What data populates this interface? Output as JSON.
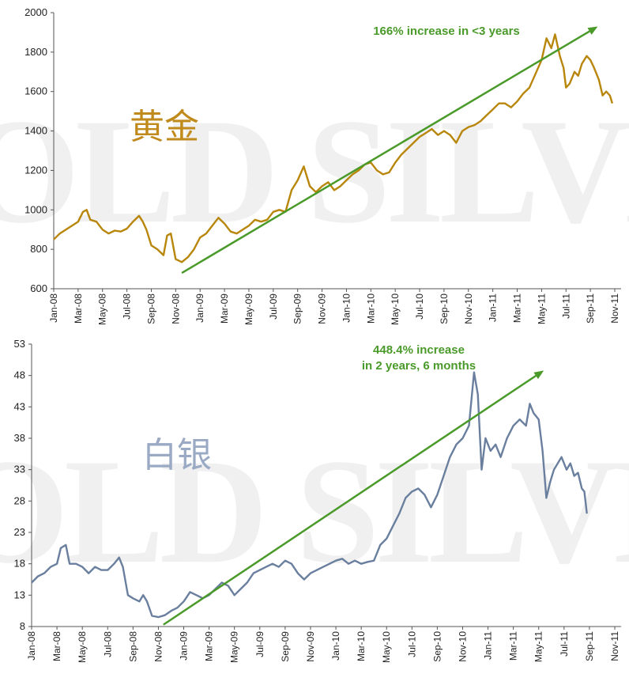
{
  "chart_data": [
    {
      "type": "line",
      "label": "黄金",
      "watermark": "GOLD SILVER",
      "line_color": "#b8860b",
      "label_color": "#c08a1c",
      "ylim": [
        600,
        2000
      ],
      "yticks": [
        "600",
        "800",
        "1000",
        "1200",
        "1400",
        "1600",
        "1800",
        "2000"
      ],
      "xticks": [
        "Jan-08",
        "Mar-08",
        "May-08",
        "Jul-08",
        "Sep-08",
        "Nov-08",
        "Jan-09",
        "Mar-09",
        "May-09",
        "Jul-09",
        "Sep-09",
        "Nov-09",
        "Jan-10",
        "Mar-10",
        "May-10",
        "Jul-10",
        "Sep-10",
        "Nov-10",
        "Jan-11",
        "Mar-11",
        "May-11",
        "Jul-11",
        "Sep-11",
        "Nov-11"
      ],
      "annotation": {
        "lines": [
          "166% increase in <3 years"
        ],
        "color": "#4a9a2a",
        "from": [
          10.5,
          680
        ],
        "to": [
          44.6,
          1930
        ]
      },
      "series": [
        {
          "values": [
            [
              0,
              850
            ],
            [
              0.5,
              880
            ],
            [
              1,
              900
            ],
            [
              1.5,
              920
            ],
            [
              2,
              940
            ],
            [
              2.4,
              990
            ],
            [
              2.7,
              1000
            ],
            [
              3,
              950
            ],
            [
              3.5,
              940
            ],
            [
              4,
              900
            ],
            [
              4.5,
              880
            ],
            [
              5,
              895
            ],
            [
              5.5,
              890
            ],
            [
              6,
              905
            ],
            [
              6.5,
              940
            ],
            [
              7,
              970
            ],
            [
              7.3,
              940
            ],
            [
              7.6,
              900
            ],
            [
              8,
              820
            ],
            [
              8.5,
              800
            ],
            [
              9,
              770
            ],
            [
              9.3,
              870
            ],
            [
              9.6,
              880
            ],
            [
              10,
              750
            ],
            [
              10.5,
              735
            ],
            [
              11,
              760
            ],
            [
              11.5,
              800
            ],
            [
              12,
              860
            ],
            [
              12.5,
              880
            ],
            [
              13,
              920
            ],
            [
              13.5,
              960
            ],
            [
              14,
              930
            ],
            [
              14.5,
              890
            ],
            [
              15,
              880
            ],
            [
              15.5,
              900
            ],
            [
              16,
              920
            ],
            [
              16.5,
              950
            ],
            [
              17,
              940
            ],
            [
              17.5,
              950
            ],
            [
              18,
              990
            ],
            [
              18.5,
              1000
            ],
            [
              19,
              990
            ],
            [
              19.5,
              1100
            ],
            [
              20,
              1150
            ],
            [
              20.5,
              1220
            ],
            [
              21,
              1120
            ],
            [
              21.5,
              1090
            ],
            [
              22,
              1120
            ],
            [
              22.5,
              1140
            ],
            [
              23,
              1100
            ],
            [
              23.5,
              1120
            ],
            [
              24,
              1150
            ],
            [
              24.5,
              1180
            ],
            [
              25,
              1200
            ],
            [
              25.5,
              1230
            ],
            [
              26,
              1240
            ],
            [
              26.5,
              1200
            ],
            [
              27,
              1180
            ],
            [
              27.5,
              1190
            ],
            [
              28,
              1240
            ],
            [
              28.5,
              1280
            ],
            [
              29,
              1310
            ],
            [
              29.5,
              1340
            ],
            [
              30,
              1370
            ],
            [
              30.5,
              1390
            ],
            [
              31,
              1410
            ],
            [
              31.5,
              1380
            ],
            [
              32,
              1400
            ],
            [
              32.5,
              1380
            ],
            [
              33,
              1340
            ],
            [
              33.5,
              1400
            ],
            [
              34,
              1420
            ],
            [
              34.5,
              1430
            ],
            [
              35,
              1450
            ],
            [
              35.5,
              1480
            ],
            [
              36,
              1510
            ],
            [
              36.5,
              1540
            ],
            [
              37,
              1540
            ],
            [
              37.5,
              1520
            ],
            [
              38,
              1550
            ],
            [
              38.5,
              1590
            ],
            [
              39,
              1620
            ],
            [
              39.5,
              1690
            ],
            [
              40,
              1760
            ],
            [
              40.4,
              1870
            ],
            [
              40.8,
              1820
            ],
            [
              41.1,
              1890
            ],
            [
              41.5,
              1780
            ],
            [
              41.8,
              1720
            ],
            [
              42,
              1620
            ],
            [
              42.3,
              1640
            ],
            [
              42.7,
              1700
            ],
            [
              43,
              1680
            ],
            [
              43.3,
              1740
            ],
            [
              43.7,
              1780
            ],
            [
              44,
              1760
            ],
            [
              44.3,
              1720
            ],
            [
              44.7,
              1660
            ],
            [
              45,
              1580
            ],
            [
              45.3,
              1600
            ],
            [
              45.6,
              1580
            ],
            [
              45.8,
              1540
            ]
          ]
        }
      ]
    },
    {
      "type": "line",
      "label": "白银",
      "watermark": "GOLD SILVER",
      "line_color": "#6a7f9e",
      "label_color": "#9aaac4",
      "ylim": [
        8,
        53
      ],
      "yticks": [
        "8",
        "13",
        "18",
        "23",
        "28",
        "33",
        "38",
        "43",
        "48",
        "53"
      ],
      "xticks": [
        "Jan-08",
        "Mar-08",
        "May-08",
        "Jul-08",
        "Sep-08",
        "Nov-08",
        "Jan-09",
        "Mar-09",
        "May-09",
        "Jul-09",
        "Sep-09",
        "Nov-09",
        "Jan-10",
        "Mar-10",
        "May-10",
        "Jul-10",
        "Sep-10",
        "Nov-10",
        "Jan-11",
        "Mar-11",
        "May-11",
        "Jul-11",
        "Sep-11",
        "Nov-11"
      ],
      "annotation": {
        "lines": [
          "448.4% increase",
          "in 2 years, 6 months"
        ],
        "color": "#4a9a2a",
        "from": [
          10.4,
          8.3
        ],
        "to": [
          40.4,
          48.8
        ]
      },
      "series": [
        {
          "values": [
            [
              0,
              15
            ],
            [
              0.5,
              16
            ],
            [
              1,
              16.5
            ],
            [
              1.5,
              17.5
            ],
            [
              2,
              18
            ],
            [
              2.3,
              20.5
            ],
            [
              2.7,
              21
            ],
            [
              3,
              18
            ],
            [
              3.5,
              18
            ],
            [
              4,
              17.5
            ],
            [
              4.5,
              16.5
            ],
            [
              5,
              17.5
            ],
            [
              5.5,
              17
            ],
            [
              6,
              17
            ],
            [
              6.5,
              18
            ],
            [
              6.9,
              19
            ],
            [
              7.2,
              17.5
            ],
            [
              7.6,
              13
            ],
            [
              8,
              12.5
            ],
            [
              8.5,
              12
            ],
            [
              8.8,
              13
            ],
            [
              9.1,
              12
            ],
            [
              9.5,
              9.7
            ],
            [
              10,
              9.5
            ],
            [
              10.5,
              9.8
            ],
            [
              11,
              10.5
            ],
            [
              11.5,
              11
            ],
            [
              12,
              12
            ],
            [
              12.5,
              13.5
            ],
            [
              13,
              13
            ],
            [
              13.5,
              12.5
            ],
            [
              14,
              13
            ],
            [
              14.5,
              14
            ],
            [
              15,
              15
            ],
            [
              15.5,
              14.5
            ],
            [
              16,
              13
            ],
            [
              16.5,
              14
            ],
            [
              17,
              15
            ],
            [
              17.5,
              16.5
            ],
            [
              18,
              17
            ],
            [
              18.5,
              17.5
            ],
            [
              19,
              18
            ],
            [
              19.5,
              17.5
            ],
            [
              20,
              18.5
            ],
            [
              20.5,
              18
            ],
            [
              21,
              16.5
            ],
            [
              21.5,
              15.5
            ],
            [
              22,
              16.5
            ],
            [
              22.5,
              17
            ],
            [
              23,
              17.5
            ],
            [
              23.5,
              18
            ],
            [
              24,
              18.5
            ],
            [
              24.5,
              18.8
            ],
            [
              25,
              18
            ],
            [
              25.5,
              18.5
            ],
            [
              26,
              18
            ],
            [
              26.5,
              18.3
            ],
            [
              27,
              18.5
            ],
            [
              27.5,
              21
            ],
            [
              28,
              22
            ],
            [
              28.5,
              24
            ],
            [
              29,
              26
            ],
            [
              29.5,
              28.5
            ],
            [
              30,
              29.5
            ],
            [
              30.5,
              30
            ],
            [
              31,
              29
            ],
            [
              31.5,
              27
            ],
            [
              32,
              29
            ],
            [
              32.5,
              32
            ],
            [
              33,
              35
            ],
            [
              33.5,
              37
            ],
            [
              34,
              38
            ],
            [
              34.5,
              40
            ],
            [
              34.9,
              48.5
            ],
            [
              35.2,
              45
            ],
            [
              35.5,
              33
            ],
            [
              35.8,
              38
            ],
            [
              36.2,
              36
            ],
            [
              36.6,
              37
            ],
            [
              37,
              35
            ],
            [
              37.5,
              38
            ],
            [
              38,
              40
            ],
            [
              38.5,
              41
            ],
            [
              39,
              40
            ],
            [
              39.3,
              43.5
            ],
            [
              39.6,
              42
            ],
            [
              40,
              41
            ],
            [
              40.3,
              36
            ],
            [
              40.6,
              28.5
            ],
            [
              40.9,
              31
            ],
            [
              41.2,
              33
            ],
            [
              41.5,
              34
            ],
            [
              41.8,
              35
            ],
            [
              42.2,
              33
            ],
            [
              42.5,
              34
            ],
            [
              42.8,
              32
            ],
            [
              43.1,
              32.5
            ],
            [
              43.4,
              30
            ],
            [
              43.6,
              29.5
            ],
            [
              43.8,
              26
            ]
          ]
        }
      ]
    }
  ]
}
